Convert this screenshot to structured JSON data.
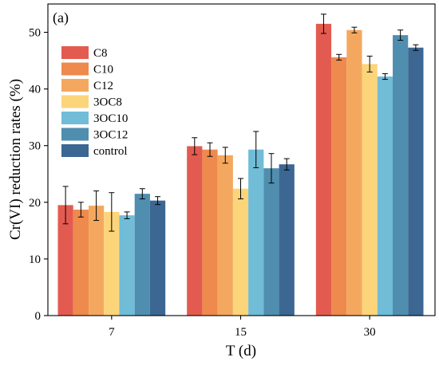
{
  "chart_data": {
    "type": "bar",
    "panel_label": "(a)",
    "xlabel": "T (d)",
    "ylabel": "Cr(VI) reduction rates (%)",
    "categories": [
      "7",
      "15",
      "30"
    ],
    "ylim": [
      0,
      55
    ],
    "yticks": [
      0,
      10,
      20,
      30,
      40,
      50
    ],
    "grid": false,
    "legend_position": "top-left",
    "series": [
      {
        "name": "C8",
        "color": "#E35B50",
        "values": [
          19.5,
          29.9,
          51.5
        ],
        "errors": [
          3.3,
          1.5,
          1.7
        ]
      },
      {
        "name": "C10",
        "color": "#EE8A4D",
        "values": [
          18.7,
          29.3,
          45.6
        ],
        "errors": [
          1.3,
          1.2,
          0.5
        ]
      },
      {
        "name": "C12",
        "color": "#F4A85F",
        "values": [
          19.4,
          28.3,
          50.4
        ],
        "errors": [
          2.6,
          1.4,
          0.5
        ]
      },
      {
        "name": "3OC8",
        "color": "#FCD57B",
        "values": [
          18.3,
          22.4,
          44.4
        ],
        "errors": [
          3.4,
          1.8,
          1.4
        ]
      },
      {
        "name": "3OC10",
        "color": "#71BCD7",
        "values": [
          17.7,
          29.3,
          42.2
        ],
        "errors": [
          0.6,
          3.2,
          0.5
        ]
      },
      {
        "name": "3OC12",
        "color": "#4F8EAF",
        "values": [
          21.5,
          26.0,
          49.5
        ],
        "errors": [
          0.9,
          2.6,
          0.9
        ]
      },
      {
        "name": "control",
        "color": "#3B6792",
        "values": [
          20.3,
          26.7,
          47.3
        ],
        "errors": [
          0.7,
          1.0,
          0.5
        ]
      }
    ]
  }
}
